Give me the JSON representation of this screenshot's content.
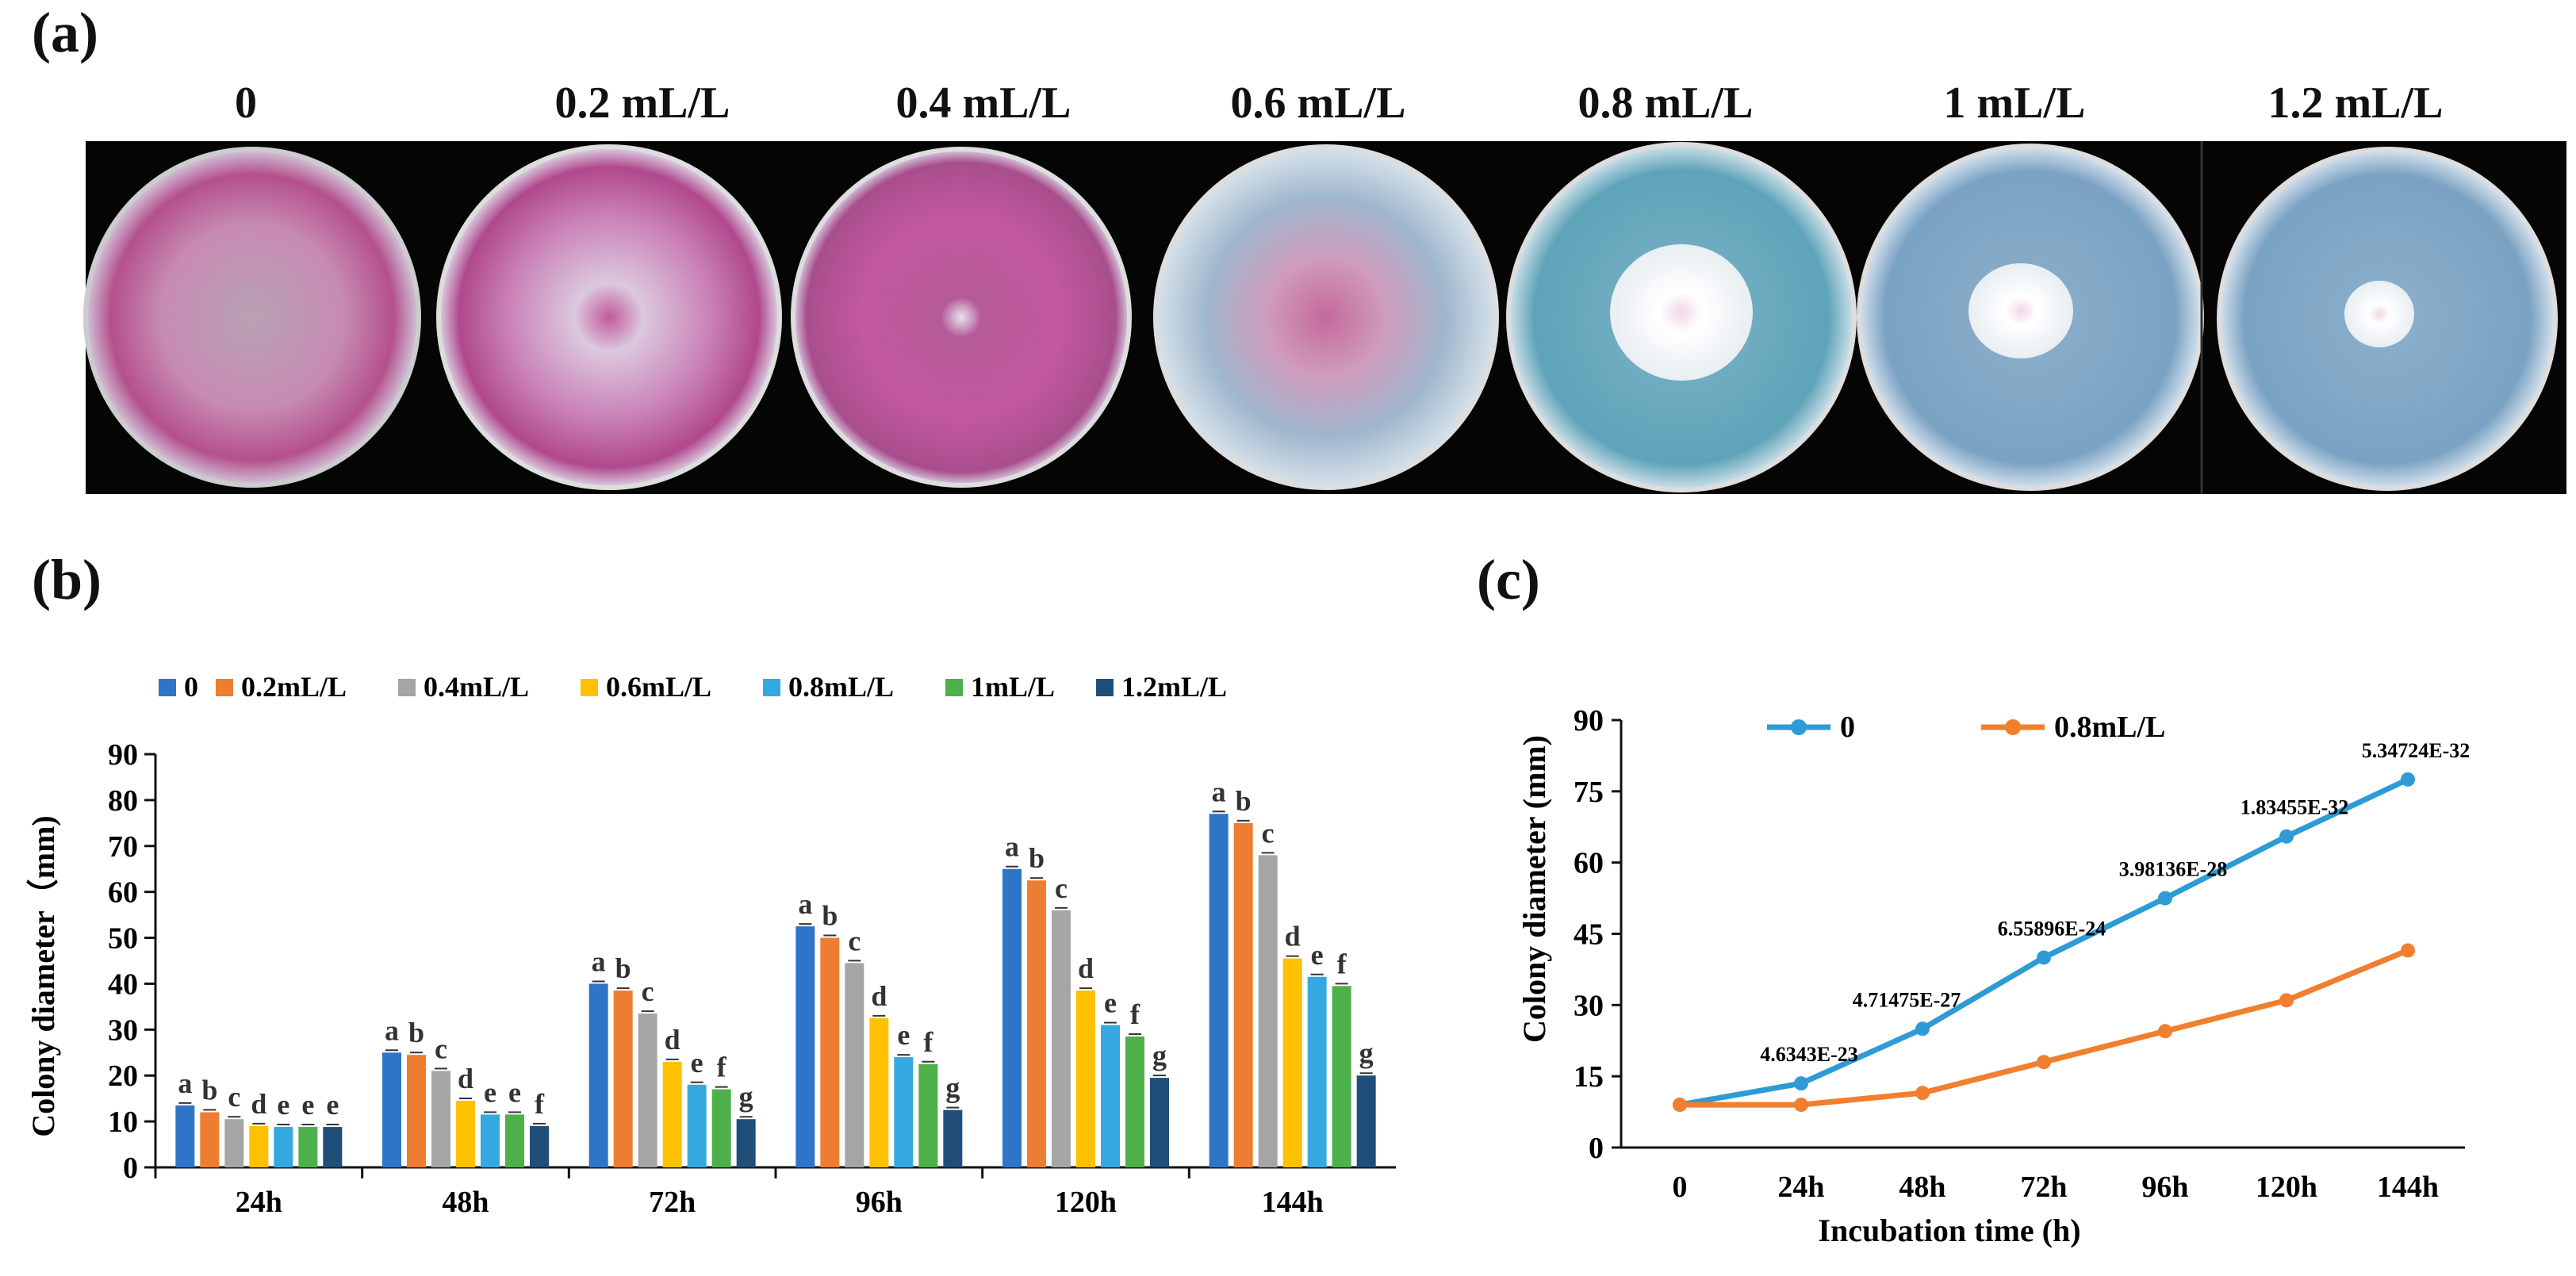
{
  "figure": {
    "panel_a_label": "(a)",
    "panel_b_label": "(b)",
    "panel_c_label": "(c)"
  },
  "panel_a": {
    "concentrations": [
      "0",
      "0.2 mL/L",
      "0.4 mL/L",
      "0.6 mL/L",
      "0.8 mL/L",
      "1 mL/L",
      "1.2 mL/L"
    ]
  },
  "chart_data": [
    {
      "type": "bar",
      "panel": "b",
      "title": "",
      "xlabel": "",
      "ylabel": "Colony diameter（mm)",
      "ylim": [
        0,
        90
      ],
      "yticks": [
        0,
        10,
        20,
        30,
        40,
        50,
        60,
        70,
        80,
        90
      ],
      "categories": [
        "24h",
        "48h",
        "72h",
        "96h",
        "120h",
        "144h"
      ],
      "legend_position": "top",
      "series": [
        {
          "name": "0",
          "color": "#2e75c8",
          "values": [
            13.5,
            25.0,
            40.0,
            52.5,
            65.0,
            77.0
          ],
          "letters": [
            "a",
            "a",
            "a",
            "a",
            "a",
            "a"
          ]
        },
        {
          "name": "0.2mL/L",
          "color": "#ed7d31",
          "values": [
            12.0,
            24.5,
            38.5,
            50.0,
            62.5,
            75.0
          ],
          "letters": [
            "b",
            "b",
            "b",
            "b",
            "b",
            "b"
          ]
        },
        {
          "name": "0.4mL/L",
          "color": "#a5a5a5",
          "values": [
            10.5,
            21.0,
            33.5,
            44.5,
            56.0,
            68.0
          ],
          "letters": [
            "c",
            "c",
            "c",
            "c",
            "c",
            "c"
          ]
        },
        {
          "name": "0.6mL/L",
          "color": "#ffc000",
          "values": [
            9.0,
            14.5,
            23.0,
            32.5,
            38.5,
            45.5
          ],
          "letters": [
            "d",
            "d",
            "d",
            "d",
            "d",
            "d"
          ]
        },
        {
          "name": "0.8mL/L",
          "color": "#35a8e0",
          "values": [
            8.8,
            11.5,
            18.0,
            24.0,
            31.0,
            41.5
          ],
          "letters": [
            "e",
            "e",
            "e",
            "e",
            "e",
            "e"
          ]
        },
        {
          "name": "1mL/L",
          "color": "#4eb04a",
          "values": [
            8.8,
            11.5,
            17.0,
            22.5,
            28.5,
            39.5
          ],
          "letters": [
            "e",
            "e",
            "f",
            "f",
            "f",
            "f"
          ]
        },
        {
          "name": "1.2mL/L",
          "color": "#1f4e79",
          "values": [
            8.8,
            9.0,
            10.5,
            12.5,
            19.5,
            20.0
          ],
          "letters": [
            "e",
            "f",
            "g",
            "g",
            "g",
            "g"
          ]
        }
      ]
    },
    {
      "type": "line",
      "panel": "c",
      "title": "",
      "xlabel": "Incubation time (h)",
      "ylabel": "Colony diameter (mm)",
      "ylim": [
        0,
        90
      ],
      "yticks": [
        0,
        15,
        30,
        45,
        60,
        75,
        90
      ],
      "x": [
        "0",
        "24h",
        "48h",
        "72h",
        "96h",
        "120h",
        "144h"
      ],
      "legend_position": "top-left",
      "series": [
        {
          "name": "0",
          "color": "#2e9bd6",
          "values": [
            9.0,
            13.5,
            25.0,
            40.0,
            52.5,
            65.5,
            77.5
          ]
        },
        {
          "name": "0.8mL/L",
          "color": "#f07f2f",
          "values": [
            9.0,
            9.0,
            11.5,
            18.0,
            24.5,
            31.0,
            41.5
          ]
        }
      ],
      "annotations": [
        "4.6343E-23",
        "4.71475E-27",
        "6.55896E-24",
        "3.98136E-28",
        "1.83455E-32",
        "5.34724E-32"
      ]
    }
  ]
}
